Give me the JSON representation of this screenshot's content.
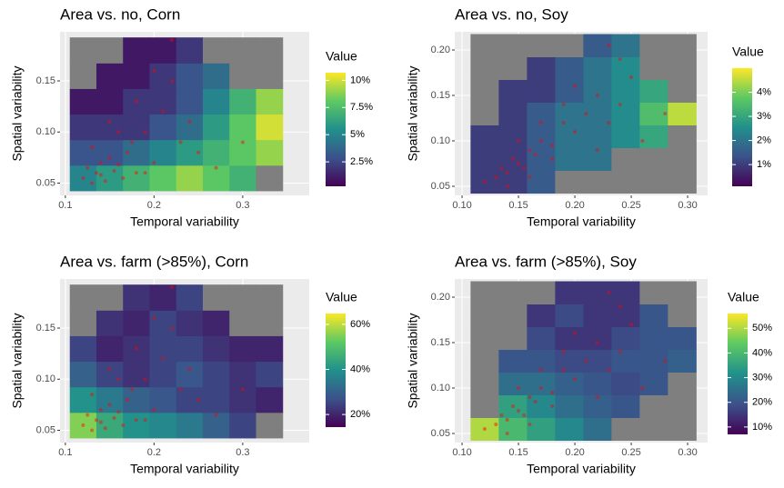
{
  "chart_data": [
    {
      "type": "heatmap",
      "title": "Area vs. no, Corn",
      "x_label": "Temporal variability",
      "y_label": "Spatial variability",
      "xlim": [
        0.094,
        0.375
      ],
      "ylim": [
        0.038,
        0.198
      ],
      "xticks": [
        0.1,
        0.2,
        0.3
      ],
      "yticks": [
        0.05,
        {
          "value": 0.1,
          "label": "0.10"
        },
        0.15
      ],
      "legend_title": "Value",
      "clim": [
        0.25,
        10.7
      ],
      "colorbar_ticks": [
        {
          "value": 2.5,
          "label": "2.5%"
        },
        {
          "value": 5,
          "label": "5%"
        },
        {
          "value": 7.5,
          "label": "7.5%"
        },
        {
          "value": 10,
          "label": "10%"
        }
      ],
      "colorscale": [
        "#440154",
        "#3b528b",
        "#21908c",
        "#5dc963",
        "#fde725"
      ],
      "na_color": "#7f7f7f",
      "heatmap": {
        "x": [
          0.12,
          0.15,
          0.18,
          0.21,
          0.24,
          0.27,
          0.3,
          0.33
        ],
        "y": [
          0.055,
          0.08,
          0.105,
          0.13,
          0.155,
          0.18
        ],
        "values": [
          [
            5,
            6,
            7,
            8,
            9,
            8,
            7,
            null
          ],
          [
            3,
            3,
            4,
            5,
            6,
            7,
            8,
            9
          ],
          [
            2,
            2,
            2,
            3,
            4,
            6,
            8,
            10
          ],
          [
            1,
            1,
            2,
            2,
            3,
            5,
            7,
            9
          ],
          [
            null,
            1,
            1,
            2,
            3,
            4,
            null,
            null
          ],
          [
            null,
            null,
            1,
            1,
            2,
            null,
            null,
            null
          ]
        ]
      },
      "points": {
        "color": "#ff0000",
        "x": [
          0.12,
          0.125,
          0.13,
          0.135,
          0.14,
          0.14,
          0.145,
          0.15,
          0.155,
          0.16,
          0.165,
          0.17,
          0.175,
          0.18,
          0.19,
          0.2,
          0.21,
          0.22,
          0.23,
          0.25,
          0.27,
          0.15,
          0.18,
          0.2,
          0.24,
          0.13,
          0.16,
          0.3,
          0.22,
          0.19
        ],
        "y": [
          0.055,
          0.065,
          0.05,
          0.06,
          0.07,
          0.058,
          0.052,
          0.075,
          0.062,
          0.068,
          0.055,
          0.08,
          0.09,
          0.06,
          0.1,
          0.07,
          0.12,
          0.15,
          0.09,
          0.08,
          0.065,
          0.11,
          0.13,
          0.16,
          0.11,
          0.085,
          0.1,
          0.09,
          0.19,
          0.06
        ]
      }
    },
    {
      "type": "heatmap",
      "title": "Area vs. no, Soy",
      "x_label": "Temporal variability",
      "y_label": "Spatial variability",
      "xlim": [
        0.0935,
        0.3177
      ],
      "ylim": [
        0.04,
        0.22
      ],
      "xticks": [
        {
          "value": 0.1,
          "label": "0.10"
        },
        0.15,
        {
          "value": 0.2,
          "label": "0.20"
        },
        0.25,
        {
          "value": 0.3,
          "label": "0.30"
        }
      ],
      "yticks": [
        0.05,
        {
          "value": 0.1,
          "label": "0.10"
        },
        0.15,
        {
          "value": 0.2,
          "label": "0.20"
        }
      ],
      "legend_title": "Value",
      "clim": [
        0.1,
        5.0
      ],
      "colorbar_ticks": [
        {
          "value": 1,
          "label": "1%"
        },
        {
          "value": 2,
          "label": "2%"
        },
        {
          "value": 3,
          "label": "3%"
        },
        {
          "value": 4,
          "label": "4%"
        }
      ],
      "colorscale": [
        "#440154",
        "#3b528b",
        "#21908c",
        "#5dc963",
        "#fde725"
      ],
      "na_color": "#7f7f7f",
      "heatmap": {
        "x": [
          0.12,
          0.145,
          0.17,
          0.195,
          0.22,
          0.245,
          0.27,
          0.295
        ],
        "y": [
          0.055,
          0.08,
          0.105,
          0.13,
          0.155,
          0.18,
          0.205
        ],
        "values": [
          [
            1,
            1,
            1.5,
            null,
            null,
            null,
            null,
            null
          ],
          [
            1,
            1,
            1.5,
            2,
            2,
            null,
            null,
            null
          ],
          [
            1,
            1,
            1.5,
            2,
            2,
            2.5,
            3,
            null
          ],
          [
            null,
            1,
            1.5,
            2,
            2,
            2.5,
            3.5,
            4.5
          ],
          [
            null,
            1,
            1,
            1.5,
            2,
            2.5,
            3,
            null
          ],
          [
            null,
            null,
            1,
            1.5,
            2,
            2.5,
            null,
            null
          ],
          [
            null,
            null,
            null,
            null,
            1.5,
            2,
            null,
            null
          ]
        ]
      },
      "points": {
        "color": "#ff0000",
        "x": [
          0.12,
          0.13,
          0.135,
          0.14,
          0.145,
          0.15,
          0.155,
          0.16,
          0.165,
          0.17,
          0.18,
          0.19,
          0.2,
          0.21,
          0.22,
          0.23,
          0.24,
          0.25,
          0.26,
          0.14,
          0.16,
          0.18,
          0.2,
          0.22,
          0.24,
          0.15,
          0.17,
          0.28,
          0.23,
          0.19
        ],
        "y": [
          0.055,
          0.06,
          0.07,
          0.065,
          0.08,
          0.075,
          0.07,
          0.09,
          0.085,
          0.1,
          0.095,
          0.12,
          0.11,
          0.13,
          0.15,
          0.12,
          0.14,
          0.17,
          0.1,
          0.05,
          0.06,
          0.08,
          0.16,
          0.09,
          0.19,
          0.1,
          0.12,
          0.13,
          0.205,
          0.14
        ]
      }
    },
    {
      "type": "heatmap",
      "title": "Area vs. farm (>85%), Corn",
      "x_label": "Temporal variability",
      "y_label": "Spatial variability",
      "xlim": [
        0.094,
        0.375
      ],
      "ylim": [
        0.038,
        0.198
      ],
      "xticks": [
        0.1,
        0.2,
        0.3
      ],
      "yticks": [
        0.05,
        {
          "value": 0.1,
          "label": "0.10"
        },
        0.15
      ],
      "legend_title": "Value",
      "clim": [
        14.4,
        64.8
      ],
      "colorbar_ticks": [
        {
          "value": 20,
          "label": "20%"
        },
        {
          "value": 40,
          "label": "40%"
        },
        {
          "value": 60,
          "label": "60%"
        }
      ],
      "colorscale": [
        "#440154",
        "#3b528b",
        "#21908c",
        "#5dc963",
        "#fde725"
      ],
      "na_color": "#7f7f7f",
      "heatmap": {
        "x": [
          0.12,
          0.15,
          0.18,
          0.21,
          0.24,
          0.27,
          0.3,
          0.33
        ],
        "y": [
          0.055,
          0.08,
          0.105,
          0.13,
          0.155,
          0.18
        ],
        "values": [
          [
            55,
            45,
            40,
            38,
            35,
            30,
            25,
            null
          ],
          [
            40,
            35,
            30,
            28,
            25,
            25,
            22,
            20
          ],
          [
            30,
            25,
            22,
            25,
            28,
            25,
            22,
            25
          ],
          [
            25,
            20,
            22,
            25,
            25,
            22,
            20,
            20
          ],
          [
            null,
            22,
            20,
            25,
            22,
            20,
            null,
            null
          ],
          [
            null,
            null,
            22,
            20,
            25,
            null,
            null,
            null
          ]
        ]
      },
      "points": {
        "color": "#ff0000",
        "x": [
          0.12,
          0.125,
          0.13,
          0.135,
          0.14,
          0.14,
          0.145,
          0.15,
          0.155,
          0.16,
          0.165,
          0.17,
          0.175,
          0.18,
          0.19,
          0.2,
          0.21,
          0.22,
          0.23,
          0.25,
          0.27,
          0.15,
          0.18,
          0.2,
          0.24,
          0.13,
          0.16,
          0.3,
          0.22,
          0.19
        ],
        "y": [
          0.055,
          0.065,
          0.05,
          0.06,
          0.07,
          0.058,
          0.052,
          0.075,
          0.062,
          0.068,
          0.055,
          0.08,
          0.09,
          0.06,
          0.1,
          0.07,
          0.12,
          0.15,
          0.09,
          0.08,
          0.065,
          0.11,
          0.13,
          0.16,
          0.11,
          0.085,
          0.1,
          0.09,
          0.19,
          0.06
        ]
      }
    },
    {
      "type": "heatmap",
      "title": "Area vs. farm (>85%), Soy",
      "x_label": "Temporal variability",
      "y_label": "Spatial variability",
      "xlim": [
        0.0935,
        0.3177
      ],
      "ylim": [
        0.04,
        0.22
      ],
      "xticks": [
        {
          "value": 0.1,
          "label": "0.10"
        },
        0.15,
        {
          "value": 0.2,
          "label": "0.20"
        },
        0.25,
        {
          "value": 0.3,
          "label": "0.30"
        }
      ],
      "yticks": [
        0.05,
        {
          "value": 0.1,
          "label": "0.10"
        },
        0.15,
        {
          "value": 0.2,
          "label": "0.20"
        }
      ],
      "legend_title": "Value",
      "clim": [
        7,
        56
      ],
      "colorbar_ticks": [
        {
          "value": 10,
          "label": "10%"
        },
        {
          "value": 20,
          "label": "20%"
        },
        {
          "value": 30,
          "label": "30%"
        },
        {
          "value": 40,
          "label": "40%"
        },
        {
          "value": 50,
          "label": "50%"
        }
      ],
      "colorscale": [
        "#440154",
        "#3b528b",
        "#21908c",
        "#5dc963",
        "#fde725"
      ],
      "na_color": "#7f7f7f",
      "heatmap": {
        "x": [
          0.12,
          0.145,
          0.17,
          0.195,
          0.22,
          0.245,
          0.27,
          0.295
        ],
        "y": [
          0.055,
          0.08,
          0.105,
          0.13,
          0.155,
          0.18,
          0.205
        ],
        "values": [
          [
            50,
            40,
            35,
            30,
            25,
            null,
            null,
            null
          ],
          [
            null,
            35,
            30,
            25,
            22,
            20,
            null,
            null
          ],
          [
            null,
            25,
            25,
            22,
            20,
            18,
            20,
            null
          ],
          [
            null,
            20,
            20,
            18,
            18,
            20,
            20,
            22
          ],
          [
            null,
            null,
            18,
            15,
            15,
            18,
            20,
            20
          ],
          [
            null,
            null,
            15,
            18,
            15,
            15,
            20,
            null
          ],
          [
            null,
            null,
            null,
            15,
            15,
            15,
            null,
            null
          ]
        ]
      },
      "points": {
        "color": "#ff0000",
        "x": [
          0.12,
          0.13,
          0.135,
          0.14,
          0.145,
          0.15,
          0.155,
          0.16,
          0.165,
          0.17,
          0.18,
          0.19,
          0.2,
          0.21,
          0.22,
          0.23,
          0.24,
          0.25,
          0.26,
          0.14,
          0.16,
          0.18,
          0.2,
          0.22,
          0.24,
          0.15,
          0.17,
          0.28,
          0.23,
          0.19
        ],
        "y": [
          0.055,
          0.06,
          0.07,
          0.065,
          0.08,
          0.075,
          0.07,
          0.09,
          0.085,
          0.1,
          0.095,
          0.12,
          0.11,
          0.13,
          0.15,
          0.12,
          0.14,
          0.17,
          0.1,
          0.05,
          0.06,
          0.08,
          0.16,
          0.09,
          0.19,
          0.1,
          0.12,
          0.13,
          0.205,
          0.14
        ]
      }
    }
  ]
}
